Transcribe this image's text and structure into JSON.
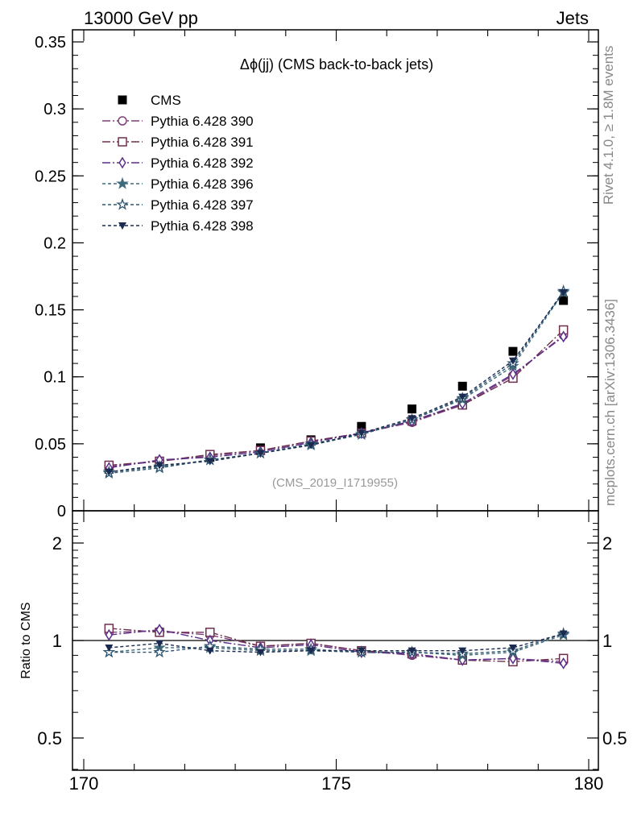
{
  "header": {
    "energy_label": "13000 GeV pp",
    "process_label": "Jets"
  },
  "side_labels": {
    "rivet": "Rivet 4.1.0, ≥ 1.8M events",
    "mcplots": "mcplots.cern.ch [arXiv:1306.3436]"
  },
  "colors": {
    "frame": "#000000",
    "data": "#000000",
    "reference_line": "#000000",
    "watermark": "#999999",
    "side_text": "#888888"
  },
  "chart_data": [
    {
      "type": "line",
      "panel": "main",
      "title": "Δϕ(jj) (CMS back-to-back jets)",
      "analysis_tag": "(CMS_2019_I1719955)",
      "xlabel": "",
      "ylabel": "",
      "xlim": [
        170,
        180
      ],
      "ylim": [
        0,
        0.36
      ],
      "yticks": [
        0,
        0.05,
        0.1,
        0.15,
        0.2,
        0.25,
        0.3,
        0.35
      ],
      "ytick_labels": [
        "0",
        "0.05",
        "0.1",
        "0.15",
        "0.2",
        "0.25",
        "0.3",
        "0.35"
      ],
      "legend_position": "top-left",
      "x": [
        170.5,
        171.5,
        172.5,
        173.5,
        174.5,
        175.5,
        176.5,
        177.5,
        178.5,
        179.5
      ],
      "series": [
        {
          "name": "CMS",
          "marker": "square-filled",
          "color": "#000000",
          "dash": "none",
          "values": [
            0.031,
            0.035,
            0.04,
            0.047,
            0.053,
            0.063,
            0.076,
            0.093,
            0.119,
            0.157
          ]
        },
        {
          "name": "Pythia 6.428 390",
          "marker": "circle-open",
          "color": "#7b3f7b",
          "dash": "10,3,2,3",
          "values": [
            0.033,
            0.037,
            0.041,
            0.045,
            0.052,
            0.058,
            0.066,
            0.079,
            0.101,
            0.131
          ]
        },
        {
          "name": "Pythia 6.428 391",
          "marker": "square-open",
          "color": "#6e2e4e",
          "dash": "10,3,2,3",
          "values": [
            0.034,
            0.037,
            0.042,
            0.045,
            0.052,
            0.058,
            0.067,
            0.079,
            0.099,
            0.135
          ]
        },
        {
          "name": "Pythia 6.428 392",
          "marker": "diamond-open",
          "color": "#5a2f8a",
          "dash": "10,3,2,3",
          "values": [
            0.032,
            0.038,
            0.04,
            0.044,
            0.051,
            0.058,
            0.067,
            0.08,
            0.102,
            0.13
          ]
        },
        {
          "name": "Pythia 6.428 396",
          "marker": "star-filled",
          "color": "#3f6a7a",
          "dash": "4,3",
          "values": [
            0.029,
            0.033,
            0.038,
            0.043,
            0.049,
            0.057,
            0.068,
            0.083,
            0.108,
            0.163
          ]
        },
        {
          "name": "Pythia 6.428 397",
          "marker": "star-open",
          "color": "#2f5670",
          "dash": "4,3",
          "values": [
            0.028,
            0.032,
            0.038,
            0.043,
            0.05,
            0.057,
            0.068,
            0.084,
            0.11,
            0.164
          ]
        },
        {
          "name": "Pythia 6.428 398",
          "marker": "triangle-down-filled",
          "color": "#1a2a50",
          "dash": "4,3",
          "values": [
            0.029,
            0.034,
            0.037,
            0.043,
            0.049,
            0.058,
            0.069,
            0.085,
            0.112,
            0.163
          ]
        }
      ]
    },
    {
      "type": "line",
      "panel": "ratio",
      "title": "",
      "xlabel": "",
      "ylabel": "Ratio to CMS",
      "xlim": [
        170,
        180
      ],
      "ylim": [
        0.4,
        2.3
      ],
      "yscale": "log",
      "yticks": [
        0.5,
        1,
        2
      ],
      "ytick_labels": [
        "0.5",
        "1",
        "2"
      ],
      "xticks": [
        170,
        175,
        180
      ],
      "xtick_labels": [
        "170",
        "175",
        "180"
      ],
      "reference_value": 1,
      "x": [
        170.5,
        171.5,
        172.5,
        173.5,
        174.5,
        175.5,
        176.5,
        177.5,
        178.5,
        179.5
      ],
      "series": [
        {
          "name": "Pythia 6.428 390",
          "values": [
            1.06,
            1.07,
            1.04,
            0.96,
            0.98,
            0.93,
            0.9,
            0.87,
            0.88,
            0.86
          ]
        },
        {
          "name": "Pythia 6.428 391",
          "values": [
            1.09,
            1.06,
            1.06,
            0.96,
            0.98,
            0.93,
            0.91,
            0.87,
            0.86,
            0.88
          ]
        },
        {
          "name": "Pythia 6.428 392",
          "values": [
            1.04,
            1.08,
            1.0,
            0.95,
            0.97,
            0.92,
            0.91,
            0.87,
            0.88,
            0.85
          ]
        },
        {
          "name": "Pythia 6.428 396",
          "values": [
            0.92,
            0.95,
            0.95,
            0.93,
            0.93,
            0.92,
            0.92,
            0.9,
            0.92,
            1.04
          ]
        },
        {
          "name": "Pythia 6.428 397",
          "values": [
            0.92,
            0.92,
            0.96,
            0.94,
            0.94,
            0.92,
            0.92,
            0.91,
            0.93,
            1.05
          ]
        },
        {
          "name": "Pythia 6.428 398",
          "values": [
            0.95,
            0.98,
            0.93,
            0.92,
            0.93,
            0.93,
            0.93,
            0.93,
            0.95,
            1.05
          ]
        }
      ]
    }
  ]
}
